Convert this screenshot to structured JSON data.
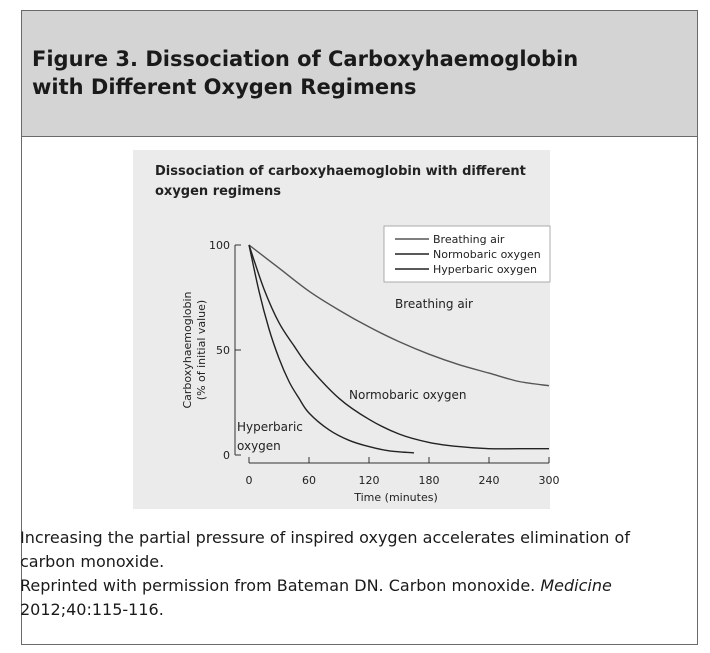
{
  "figure": {
    "title_line1": "Figure 3. Dissociation of Carboxyhaemoglobin",
    "title_line2": "with Different Oxygen Regimens"
  },
  "caption": {
    "line1": "Increasing the partial pressure of inspired oxygen accelerates elimination of carbon monoxide.",
    "credit_prefix": "Reprinted with permission from Bateman DN. Carbon monoxide. ",
    "credit_journal": "Medicine",
    "credit_suffix": " 2012;40:115-116."
  },
  "chart_data": {
    "type": "line",
    "title_line1": "Dissociation of carboxyhaemoglobin with different",
    "title_line2": "oxygen regimens",
    "xlabel": "Time (minutes)",
    "ylabel_line1": "Carboxyhaemoglobin",
    "ylabel_line2": "(% of initial value)",
    "xlim": [
      0,
      300
    ],
    "ylim": [
      0,
      100
    ],
    "x_ticks": [
      0,
      60,
      120,
      180,
      240,
      300
    ],
    "y_ticks": [
      0,
      50,
      100
    ],
    "grid": false,
    "legend_position": "top-right",
    "legend": [
      "Breathing air",
      "Normobaric oxygen",
      "Hyperbaric oxygen"
    ],
    "series": [
      {
        "name": "Breathing air",
        "color": "#555555",
        "x": [
          0,
          30,
          60,
          90,
          120,
          150,
          180,
          210,
          240,
          270,
          300
        ],
        "y": [
          100,
          89,
          78,
          69,
          61,
          54,
          48,
          43,
          39,
          35,
          33
        ]
      },
      {
        "name": "Normobaric oxygen",
        "color": "#222222",
        "x": [
          0,
          15,
          30,
          45,
          60,
          90,
          120,
          150,
          180,
          210,
          240,
          270,
          300
        ],
        "y": [
          100,
          79,
          63,
          52,
          42,
          27,
          17,
          10,
          6,
          4,
          3,
          3,
          3
        ]
      },
      {
        "name": "Hyperbaric oxygen",
        "color": "#222222",
        "x": [
          0,
          10,
          20,
          30,
          40,
          50,
          60,
          80,
          100,
          120,
          140,
          165
        ],
        "y": [
          100,
          78,
          60,
          46,
          35,
          27,
          20,
          12,
          7,
          4,
          2,
          1
        ]
      }
    ],
    "annotations": [
      {
        "text": "Breathing air",
        "x": 170,
        "y": 72
      },
      {
        "text": "Normobaric oxygen",
        "x": 150,
        "y": 29
      },
      {
        "text": "Hyperbaric",
        "x": 0,
        "y": 14
      },
      {
        "text": "oxygen",
        "x": 0,
        "y": 4
      }
    ]
  }
}
